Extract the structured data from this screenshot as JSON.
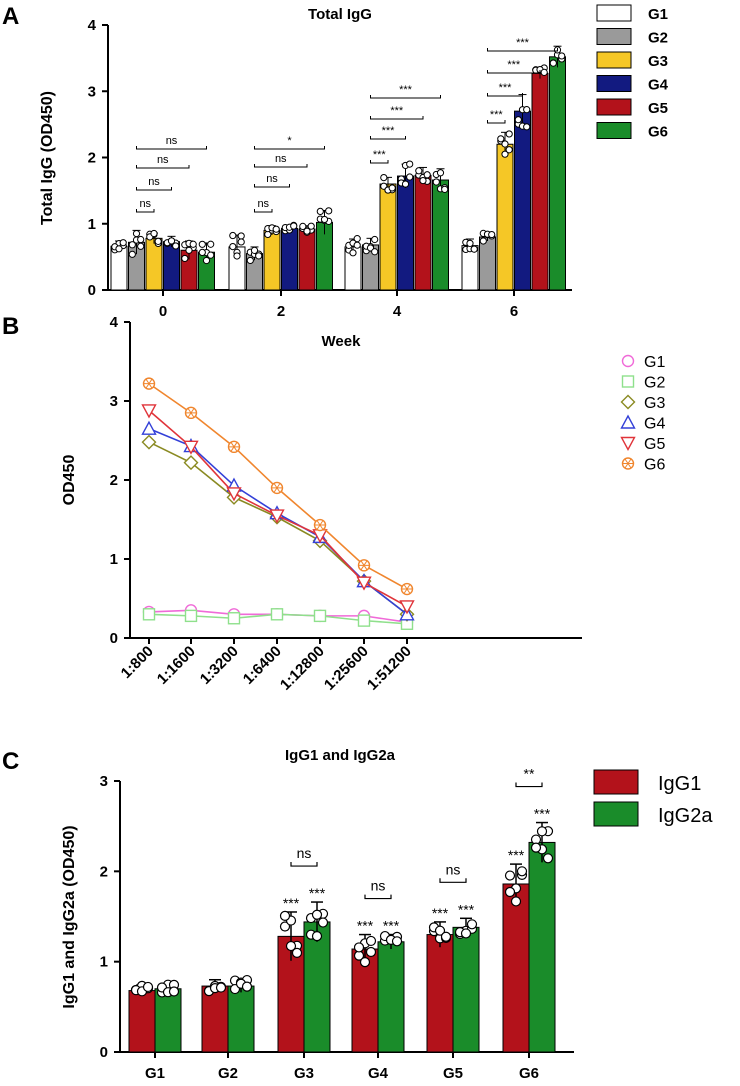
{
  "panels": {
    "a": "A",
    "b": "B",
    "c": "C"
  },
  "colors": {
    "G1": "#ffffff",
    "G2": "#9a9a9a",
    "G3": "#f5c726",
    "G4": "#121a80",
    "G5": "#b3121b",
    "G6": "#1a8c2a",
    "line_G1": "#f06ad8",
    "line_G2": "#8fe08c",
    "line_G3": "#8a8a22",
    "line_G4": "#3340d8",
    "line_G5": "#e0343a",
    "line_G6": "#f0862e",
    "IgG1": "#b3121b",
    "IgG2a": "#1a8c2a"
  },
  "chart_data": [
    {
      "id": "A",
      "type": "bar",
      "title": "Total IgG",
      "xlabel": "",
      "ylabel": "Total IgG  (OD450)",
      "ylim": [
        0,
        4
      ],
      "yticks": [
        "0",
        "1",
        "2",
        "3",
        "4"
      ],
      "categories": [
        "0",
        "2",
        "4",
        "6"
      ],
      "legend": [
        "G1",
        "G2",
        "G3",
        "G4",
        "G5",
        "G6"
      ],
      "series": [
        {
          "name": "G1",
          "values": [
            0.66,
            0.65,
            0.65,
            0.67
          ],
          "errors": [
            0.08,
            0.18,
            0.12,
            0.1
          ]
        },
        {
          "name": "G2",
          "values": [
            0.72,
            0.55,
            0.68,
            0.8
          ],
          "errors": [
            0.18,
            0.1,
            0.1,
            0.06
          ]
        },
        {
          "name": "G3",
          "values": [
            0.78,
            0.9,
            1.6,
            2.2
          ],
          "errors": [
            0.08,
            0.07,
            0.1,
            0.18
          ]
        },
        {
          "name": "G4",
          "values": [
            0.73,
            0.93,
            1.72,
            2.7
          ],
          "errors": [
            0.08,
            0.05,
            0.18,
            0.25
          ]
        },
        {
          "name": "G5",
          "values": [
            0.6,
            0.92,
            1.73,
            3.27
          ],
          "errors": [
            0.14,
            0.05,
            0.12,
            0.08
          ]
        },
        {
          "name": "G6",
          "values": [
            0.57,
            1.02,
            1.66,
            3.52
          ],
          "errors": [
            0.14,
            0.18,
            0.17,
            0.16
          ]
        }
      ],
      "significance": [
        {
          "label": "ns",
          "category": "0",
          "from": "G2",
          "to": "G3"
        },
        {
          "label": "ns",
          "category": "0",
          "from": "G2",
          "to": "G4"
        },
        {
          "label": "ns",
          "category": "0",
          "from": "G2",
          "to": "G5"
        },
        {
          "label": "ns",
          "category": "0",
          "from": "G2",
          "to": "G6"
        },
        {
          "label": "ns",
          "category": "2",
          "from": "G2",
          "to": "G3"
        },
        {
          "label": "ns",
          "category": "2",
          "from": "G2",
          "to": "G4"
        },
        {
          "label": "ns",
          "category": "2",
          "from": "G2",
          "to": "G5"
        },
        {
          "label": "*",
          "category": "2",
          "from": "G2",
          "to": "G6"
        },
        {
          "label": "***",
          "category": "4",
          "from": "G2",
          "to": "G3"
        },
        {
          "label": "***",
          "category": "4",
          "from": "G2",
          "to": "G4"
        },
        {
          "label": "***",
          "category": "4",
          "from": "G2",
          "to": "G5"
        },
        {
          "label": "***",
          "category": "4",
          "from": "G2",
          "to": "G6"
        },
        {
          "label": "***",
          "category": "6",
          "from": "G2",
          "to": "G3"
        },
        {
          "label": "***",
          "category": "6",
          "from": "G2",
          "to": "G4"
        },
        {
          "label": "***",
          "category": "6",
          "from": "G2",
          "to": "G5"
        },
        {
          "label": "***",
          "category": "6",
          "from": "G2",
          "to": "G6"
        }
      ]
    },
    {
      "id": "B",
      "type": "line",
      "title": "Week",
      "xlabel": "",
      "ylabel": "OD450",
      "ylim": [
        0,
        4
      ],
      "yticks": [
        "0",
        "1",
        "2",
        "3",
        "4"
      ],
      "categories": [
        "1:800",
        "1:1600",
        "1:3200",
        "1:6400",
        "1:12800",
        "1:25600",
        "1:51200"
      ],
      "series": [
        {
          "name": "G1",
          "marker": "circle",
          "values": [
            0.33,
            0.35,
            0.3,
            0.3,
            0.28,
            0.28,
            0.2
          ]
        },
        {
          "name": "G2",
          "marker": "square",
          "values": [
            0.3,
            0.28,
            0.25,
            0.3,
            0.28,
            0.22,
            0.18
          ]
        },
        {
          "name": "G3",
          "marker": "diamond",
          "values": [
            2.48,
            2.22,
            1.78,
            1.53,
            1.23,
            0.72,
            0.3
          ]
        },
        {
          "name": "G4",
          "marker": "triangle-up",
          "values": [
            2.65,
            2.43,
            1.93,
            1.58,
            1.28,
            0.72,
            0.3
          ]
        },
        {
          "name": "G5",
          "marker": "triangle-down",
          "values": [
            2.88,
            2.42,
            1.83,
            1.55,
            1.3,
            0.7,
            0.4
          ]
        },
        {
          "name": "G6",
          "marker": "star",
          "values": [
            3.22,
            2.85,
            2.42,
            1.9,
            1.43,
            0.92,
            0.62
          ]
        }
      ]
    },
    {
      "id": "C",
      "type": "bar",
      "title": "IgG1 and IgG2a",
      "xlabel": "",
      "ylabel": "IgG1 and IgG2a  (OD450)",
      "ylim": [
        0,
        3
      ],
      "yticks": [
        "0",
        "1",
        "2",
        "3"
      ],
      "categories": [
        "G1",
        "G2",
        "G3",
        "G4",
        "G5",
        "G6"
      ],
      "legend": [
        "IgG1",
        "IgG2a"
      ],
      "series": [
        {
          "name": "IgG1",
          "values": [
            0.68,
            0.73,
            1.28,
            1.14,
            1.3,
            1.86
          ],
          "errors": [
            0.06,
            0.07,
            0.27,
            0.16,
            0.14,
            0.22
          ],
          "stars": [
            "",
            "",
            "***",
            "***",
            "***",
            "***"
          ]
        },
        {
          "name": "IgG2a",
          "values": [
            0.7,
            0.73,
            1.44,
            1.22,
            1.38,
            2.32
          ],
          "errors": [
            0.05,
            0.07,
            0.22,
            0.08,
            0.1,
            0.22
          ],
          "stars": [
            "",
            "",
            "***",
            "***",
            "***",
            "***"
          ]
        }
      ],
      "significance": [
        {
          "label": "ns",
          "category": "G3"
        },
        {
          "label": "ns",
          "category": "G4"
        },
        {
          "label": "ns",
          "category": "G5"
        },
        {
          "label": "**",
          "category": "G6"
        }
      ]
    }
  ]
}
